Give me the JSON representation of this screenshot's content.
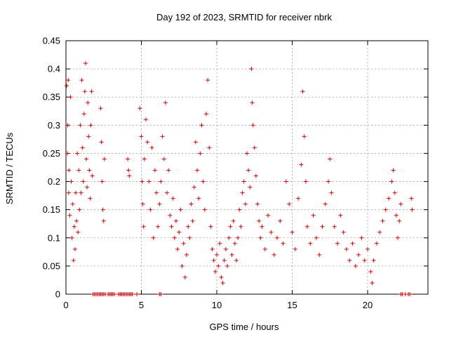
{
  "chart_data": {
    "type": "scatter",
    "title": "Day 192 of 2023, SRMTID for receiver nbrk",
    "xlabel": "GPS time / hours",
    "ylabel": "SRMTID / TECUs",
    "xlim": [
      0,
      24
    ],
    "ylim": [
      0,
      0.45
    ],
    "xticks": [
      "0",
      "5",
      "10",
      "15",
      "20"
    ],
    "yticks": [
      "0",
      "0.05",
      "0.1",
      "0.15",
      "0.2",
      "0.25",
      "0.3",
      "0.35",
      "0.4",
      "0.45"
    ],
    "grid": true,
    "marker": "+",
    "color": "#e00000",
    "series": [
      {
        "points": [
          [
            0.05,
            0.37
          ],
          [
            0.1,
            0.25
          ],
          [
            0.12,
            0.3
          ],
          [
            0.15,
            0.38
          ],
          [
            0.18,
            0.18
          ],
          [
            0.2,
            0.22
          ],
          [
            0.25,
            0.14
          ],
          [
            0.3,
            0.35
          ],
          [
            0.35,
            0.2
          ],
          [
            0.4,
            0.1
          ],
          [
            0.45,
            0.16
          ],
          [
            0.5,
            0.06
          ],
          [
            0.55,
            0.12
          ],
          [
            0.6,
            0.08
          ],
          [
            0.65,
            0.18
          ],
          [
            0.7,
            0.13
          ],
          [
            0.75,
            0.25
          ],
          [
            0.8,
            0.11
          ],
          [
            0.85,
            0.22
          ],
          [
            0.9,
            0.15
          ],
          [
            0.95,
            0.3
          ],
          [
            1.0,
            0.18
          ],
          [
            1.05,
            0.38
          ],
          [
            1.1,
            0.26
          ],
          [
            1.15,
            0.2
          ],
          [
            1.2,
            0.32
          ],
          [
            1.25,
            0.36
          ],
          [
            1.3,
            0.41
          ],
          [
            1.35,
            0.24
          ],
          [
            1.4,
            0.19
          ],
          [
            1.45,
            0.34
          ],
          [
            1.5,
            0.28
          ],
          [
            1.55,
            0.22
          ],
          [
            1.6,
            0.17
          ],
          [
            1.65,
            0.3
          ],
          [
            1.7,
            0.36
          ],
          [
            1.75,
            0.21
          ],
          [
            2.3,
            0.33
          ],
          [
            2.35,
            0.27
          ],
          [
            2.4,
            0.2
          ],
          [
            2.45,
            0.15
          ],
          [
            2.5,
            0.13
          ],
          [
            2.55,
            0.24
          ],
          [
            4.1,
            0.24
          ],
          [
            4.15,
            0.22
          ],
          [
            4.2,
            0.21
          ],
          [
            4.9,
            0.33
          ],
          [
            5.0,
            0.28
          ],
          [
            5.05,
            0.2
          ],
          [
            5.1,
            0.16
          ],
          [
            5.15,
            0.12
          ],
          [
            5.2,
            0.24
          ],
          [
            5.3,
            0.31
          ],
          [
            5.4,
            0.27
          ],
          [
            5.5,
            0.2
          ],
          [
            5.6,
            0.15
          ],
          [
            5.7,
            0.26
          ],
          [
            5.8,
            0.1
          ],
          [
            5.9,
            0.22
          ],
          [
            6.0,
            0.18
          ],
          [
            6.1,
            0.12
          ],
          [
            6.2,
            0.16
          ],
          [
            6.3,
            0.2
          ],
          [
            6.4,
            0.28
          ],
          [
            6.5,
            0.24
          ],
          [
            6.6,
            0.34
          ],
          [
            6.7,
            0.18
          ],
          [
            6.8,
            0.22
          ],
          [
            6.9,
            0.14
          ],
          [
            7.0,
            0.12
          ],
          [
            7.1,
            0.17
          ],
          [
            7.2,
            0.1
          ],
          [
            7.3,
            0.13
          ],
          [
            7.4,
            0.08
          ],
          [
            7.5,
            0.11
          ],
          [
            7.6,
            0.15
          ],
          [
            7.7,
            0.05
          ],
          [
            7.8,
            0.09
          ],
          [
            7.9,
            0.03
          ],
          [
            8.0,
            0.07
          ],
          [
            8.1,
            0.12
          ],
          [
            8.2,
            0.1
          ],
          [
            8.3,
            0.16
          ],
          [
            8.4,
            0.13
          ],
          [
            8.5,
            0.19
          ],
          [
            8.6,
            0.27
          ],
          [
            8.7,
            0.22
          ],
          [
            8.8,
            0.17
          ],
          [
            8.9,
            0.25
          ],
          [
            9.0,
            0.3
          ],
          [
            9.1,
            0.2
          ],
          [
            9.2,
            0.15
          ],
          [
            9.3,
            0.32
          ],
          [
            9.4,
            0.38
          ],
          [
            9.5,
            0.26
          ],
          [
            9.6,
            0.12
          ],
          [
            9.7,
            0.08
          ],
          [
            9.8,
            0.06
          ],
          [
            9.9,
            0.04
          ],
          [
            10.0,
            0.07
          ],
          [
            10.1,
            0.05
          ],
          [
            10.2,
            0.09
          ],
          [
            10.3,
            0.03
          ],
          [
            10.4,
            0.02
          ],
          [
            10.5,
            0.06
          ],
          [
            10.6,
            0.08
          ],
          [
            10.7,
            0.05
          ],
          [
            10.8,
            0.1
          ],
          [
            10.9,
            0.12
          ],
          [
            11.0,
            0.07
          ],
          [
            11.1,
            0.13
          ],
          [
            11.2,
            0.09
          ],
          [
            11.3,
            0.06
          ],
          [
            11.4,
            0.1
          ],
          [
            11.5,
            0.15
          ],
          [
            11.6,
            0.12
          ],
          [
            11.7,
            0.18
          ],
          [
            11.8,
            0.2
          ],
          [
            11.9,
            0.16
          ],
          [
            12.0,
            0.25
          ],
          [
            12.1,
            0.22
          ],
          [
            12.2,
            0.19
          ],
          [
            12.3,
            0.4
          ],
          [
            12.35,
            0.34
          ],
          [
            12.4,
            0.3
          ],
          [
            12.5,
            0.26
          ],
          [
            12.6,
            0.21
          ],
          [
            12.7,
            0.16
          ],
          [
            12.8,
            0.13
          ],
          [
            12.9,
            0.1
          ],
          [
            13.0,
            0.12
          ],
          [
            13.2,
            0.08
          ],
          [
            13.4,
            0.14
          ],
          [
            13.6,
            0.11
          ],
          [
            13.8,
            0.07
          ],
          [
            14.0,
            0.1
          ],
          [
            14.2,
            0.13
          ],
          [
            14.4,
            0.09
          ],
          [
            14.6,
            0.2
          ],
          [
            14.8,
            0.16
          ],
          [
            15.0,
            0.11
          ],
          [
            15.2,
            0.08
          ],
          [
            15.4,
            0.17
          ],
          [
            15.6,
            0.23
          ],
          [
            15.7,
            0.36
          ],
          [
            15.8,
            0.28
          ],
          [
            15.9,
            0.2
          ],
          [
            16.0,
            0.12
          ],
          [
            16.2,
            0.09
          ],
          [
            16.4,
            0.14
          ],
          [
            16.6,
            0.1
          ],
          [
            16.8,
            0.07
          ],
          [
            17.0,
            0.12
          ],
          [
            17.2,
            0.16
          ],
          [
            17.4,
            0.2
          ],
          [
            17.5,
            0.24
          ],
          [
            17.6,
            0.18
          ],
          [
            17.8,
            0.12
          ],
          [
            18.0,
            0.09
          ],
          [
            18.2,
            0.14
          ],
          [
            18.4,
            0.11
          ],
          [
            18.6,
            0.08
          ],
          [
            18.8,
            0.06
          ],
          [
            19.0,
            0.09
          ],
          [
            19.2,
            0.05
          ],
          [
            19.4,
            0.07
          ],
          [
            19.6,
            0.1
          ],
          [
            19.8,
            0.06
          ],
          [
            20.0,
            0.08
          ],
          [
            20.2,
            0.04
          ],
          [
            20.3,
            0.02
          ],
          [
            20.4,
            0.06
          ],
          [
            20.6,
            0.09
          ],
          [
            20.8,
            0.11
          ],
          [
            21.0,
            0.13
          ],
          [
            21.2,
            0.15
          ],
          [
            21.4,
            0.17
          ],
          [
            21.6,
            0.2
          ],
          [
            21.7,
            0.22
          ],
          [
            21.8,
            0.18
          ],
          [
            21.9,
            0.14
          ],
          [
            22.0,
            0.1
          ],
          [
            22.1,
            0.13
          ],
          [
            22.2,
            0.16
          ],
          [
            22.9,
            0.17
          ],
          [
            22.95,
            0.15
          ]
        ],
        "zero_values_x": [
          1.8,
          1.9,
          2.0,
          2.1,
          2.2,
          2.3,
          2.4,
          2.5,
          2.6,
          2.8,
          2.9,
          3.0,
          3.1,
          3.2,
          3.5,
          3.6,
          3.7,
          3.8,
          3.9,
          4.0,
          4.1,
          4.2,
          4.3,
          4.4,
          4.7,
          6.2,
          6.3,
          22.2,
          22.3,
          22.5,
          22.7,
          22.8
        ]
      }
    ]
  }
}
